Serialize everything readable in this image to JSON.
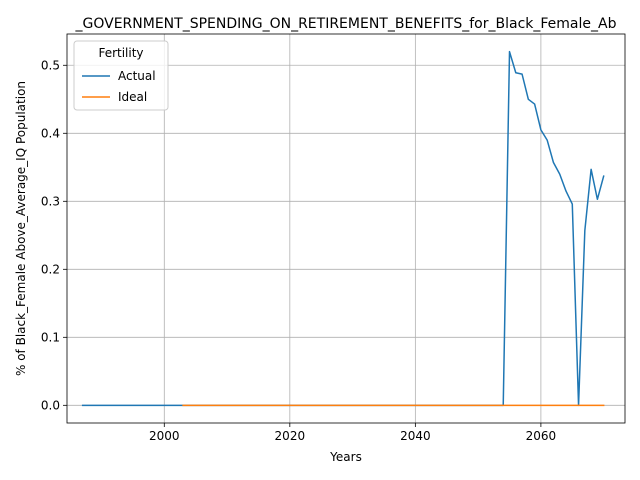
{
  "chart_data": {
    "type": "line",
    "title": "_GOVERNMENT_SPENDING_ON_RETIREMENT_BENEFITS_for_Black_Female_Ab",
    "xlabel": "Years",
    "ylabel": "% of Black_Female Above_Average_IQ Population",
    "xlim": [
      1984.5,
      2073.4
    ],
    "ylim": [
      -0.026,
      0.546
    ],
    "xticks": [
      2000,
      2020,
      2040,
      2060
    ],
    "yticks": [
      0.0,
      0.1,
      0.2,
      0.3,
      0.4,
      0.5
    ],
    "xtick_labels": [
      "2000",
      "2020",
      "2040",
      "2060"
    ],
    "ytick_labels": [
      "0.0",
      "0.1",
      "0.2",
      "0.3",
      "0.4",
      "0.5"
    ],
    "grid": true,
    "legend": {
      "title": "Fertility",
      "placement": "top-left"
    },
    "series": [
      {
        "name": "Actual",
        "color": "#1f77b4",
        "x": [
          1987,
          2003,
          2054,
          2055,
          2056,
          2057,
          2058,
          2059,
          2060,
          2061,
          2062,
          2063,
          2064,
          2065,
          2066,
          2067,
          2068,
          2069,
          2070
        ],
        "y": [
          0.0,
          0.0,
          0.0,
          0.52,
          0.489,
          0.487,
          0.45,
          0.443,
          0.405,
          0.39,
          0.357,
          0.34,
          0.315,
          0.296,
          0.0,
          0.257,
          0.347,
          0.303,
          0.337
        ]
      },
      {
        "name": "Ideal",
        "color": "#ff7f0e",
        "x": [
          2003,
          2070
        ],
        "y": [
          0.0,
          0.0
        ]
      }
    ]
  }
}
